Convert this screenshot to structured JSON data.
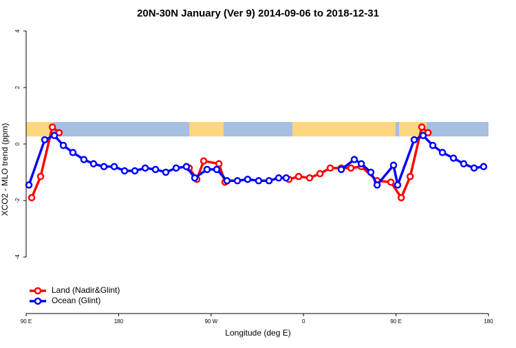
{
  "chart_data": {
    "type": "line",
    "title": "20N-30N January (Ver 9)   2014-09-06 to 2018-12-31",
    "x_label": "Longitude (deg E)",
    "y_label": "XCO2 - MLO trend (ppm)",
    "xlim": [
      90,
      540
    ],
    "ylim": [
      -6,
      4.17
    ],
    "xticks": [
      {
        "value": 90,
        "label": "90 E"
      },
      180,
      {
        "value": 270,
        "label": "90 W"
      },
      {
        "value": 360,
        "label": "0"
      },
      {
        "value": 450,
        "label": "90 E"
      },
      {
        "value": 540,
        "label": "180"
      }
    ],
    "yticks": [
      -4,
      -2,
      0,
      2,
      4
    ],
    "legend": "bottomleft",
    "series": [
      {
        "name": "Land (Nadir&Glint)",
        "color": "#ff0000",
        "x": [
          95.4,
          104.1,
          115.5,
          122.1,
          null,
          248.7,
          256.1,
          262.8,
          277.6,
          283.6,
          null,
          345.8,
          355.2,
          365.9,
          376.0,
          386.0,
          396.7,
          406.1,
          416.2,
          431.6,
          445.0,
          455.1,
          463.8,
          475.1,
          481.2
        ],
        "values": [
          -1.9,
          -1.15,
          0.6,
          0.4,
          null,
          -0.85,
          -1.25,
          -0.6,
          -0.7,
          -1.35,
          null,
          -1.25,
          -1.15,
          -1.2,
          -1.05,
          -0.85,
          -0.85,
          -0.85,
          -0.8,
          -1.3,
          -1.35,
          -1.9,
          -1.15,
          0.6,
          0.4
        ]
      },
      {
        "name": "Ocean (Glint)",
        "color": "#0000ff",
        "x": [
          92.7,
          108.1,
          117.5,
          126.2,
          135.5,
          146.2,
          155.6,
          165.7,
          175.7,
          185.8,
          195.8,
          205.9,
          215.9,
          225.9,
          236.0,
          246.0,
          254.1,
          266.1,
          275.5,
          285.5,
          295.6,
          305.6,
          316.3,
          326.4,
          335.8,
          343.1,
          null,
          396.7,
          409.4,
          416.2,
          425.5,
          431.6,
          447.6,
          451.6,
          467.7,
          476.4,
          485.8,
          495.2,
          505.9,
          515.9,
          526.0,
          535.3
        ],
        "values": [
          -1.45,
          0.15,
          0.3,
          -0.05,
          -0.3,
          -0.55,
          -0.7,
          -0.8,
          -0.8,
          -0.95,
          -0.95,
          -0.85,
          -0.9,
          -1.0,
          -0.85,
          -0.8,
          -1.2,
          -0.9,
          -0.9,
          -1.3,
          -1.3,
          -1.25,
          -1.3,
          -1.3,
          -1.2,
          -1.2,
          null,
          -0.9,
          -0.55,
          -0.7,
          -1.0,
          -1.45,
          -0.75,
          -1.45,
          0.15,
          0.3,
          -0.05,
          -0.3,
          -0.5,
          -0.7,
          -0.85,
          -0.8
        ]
      }
    ]
  }
}
